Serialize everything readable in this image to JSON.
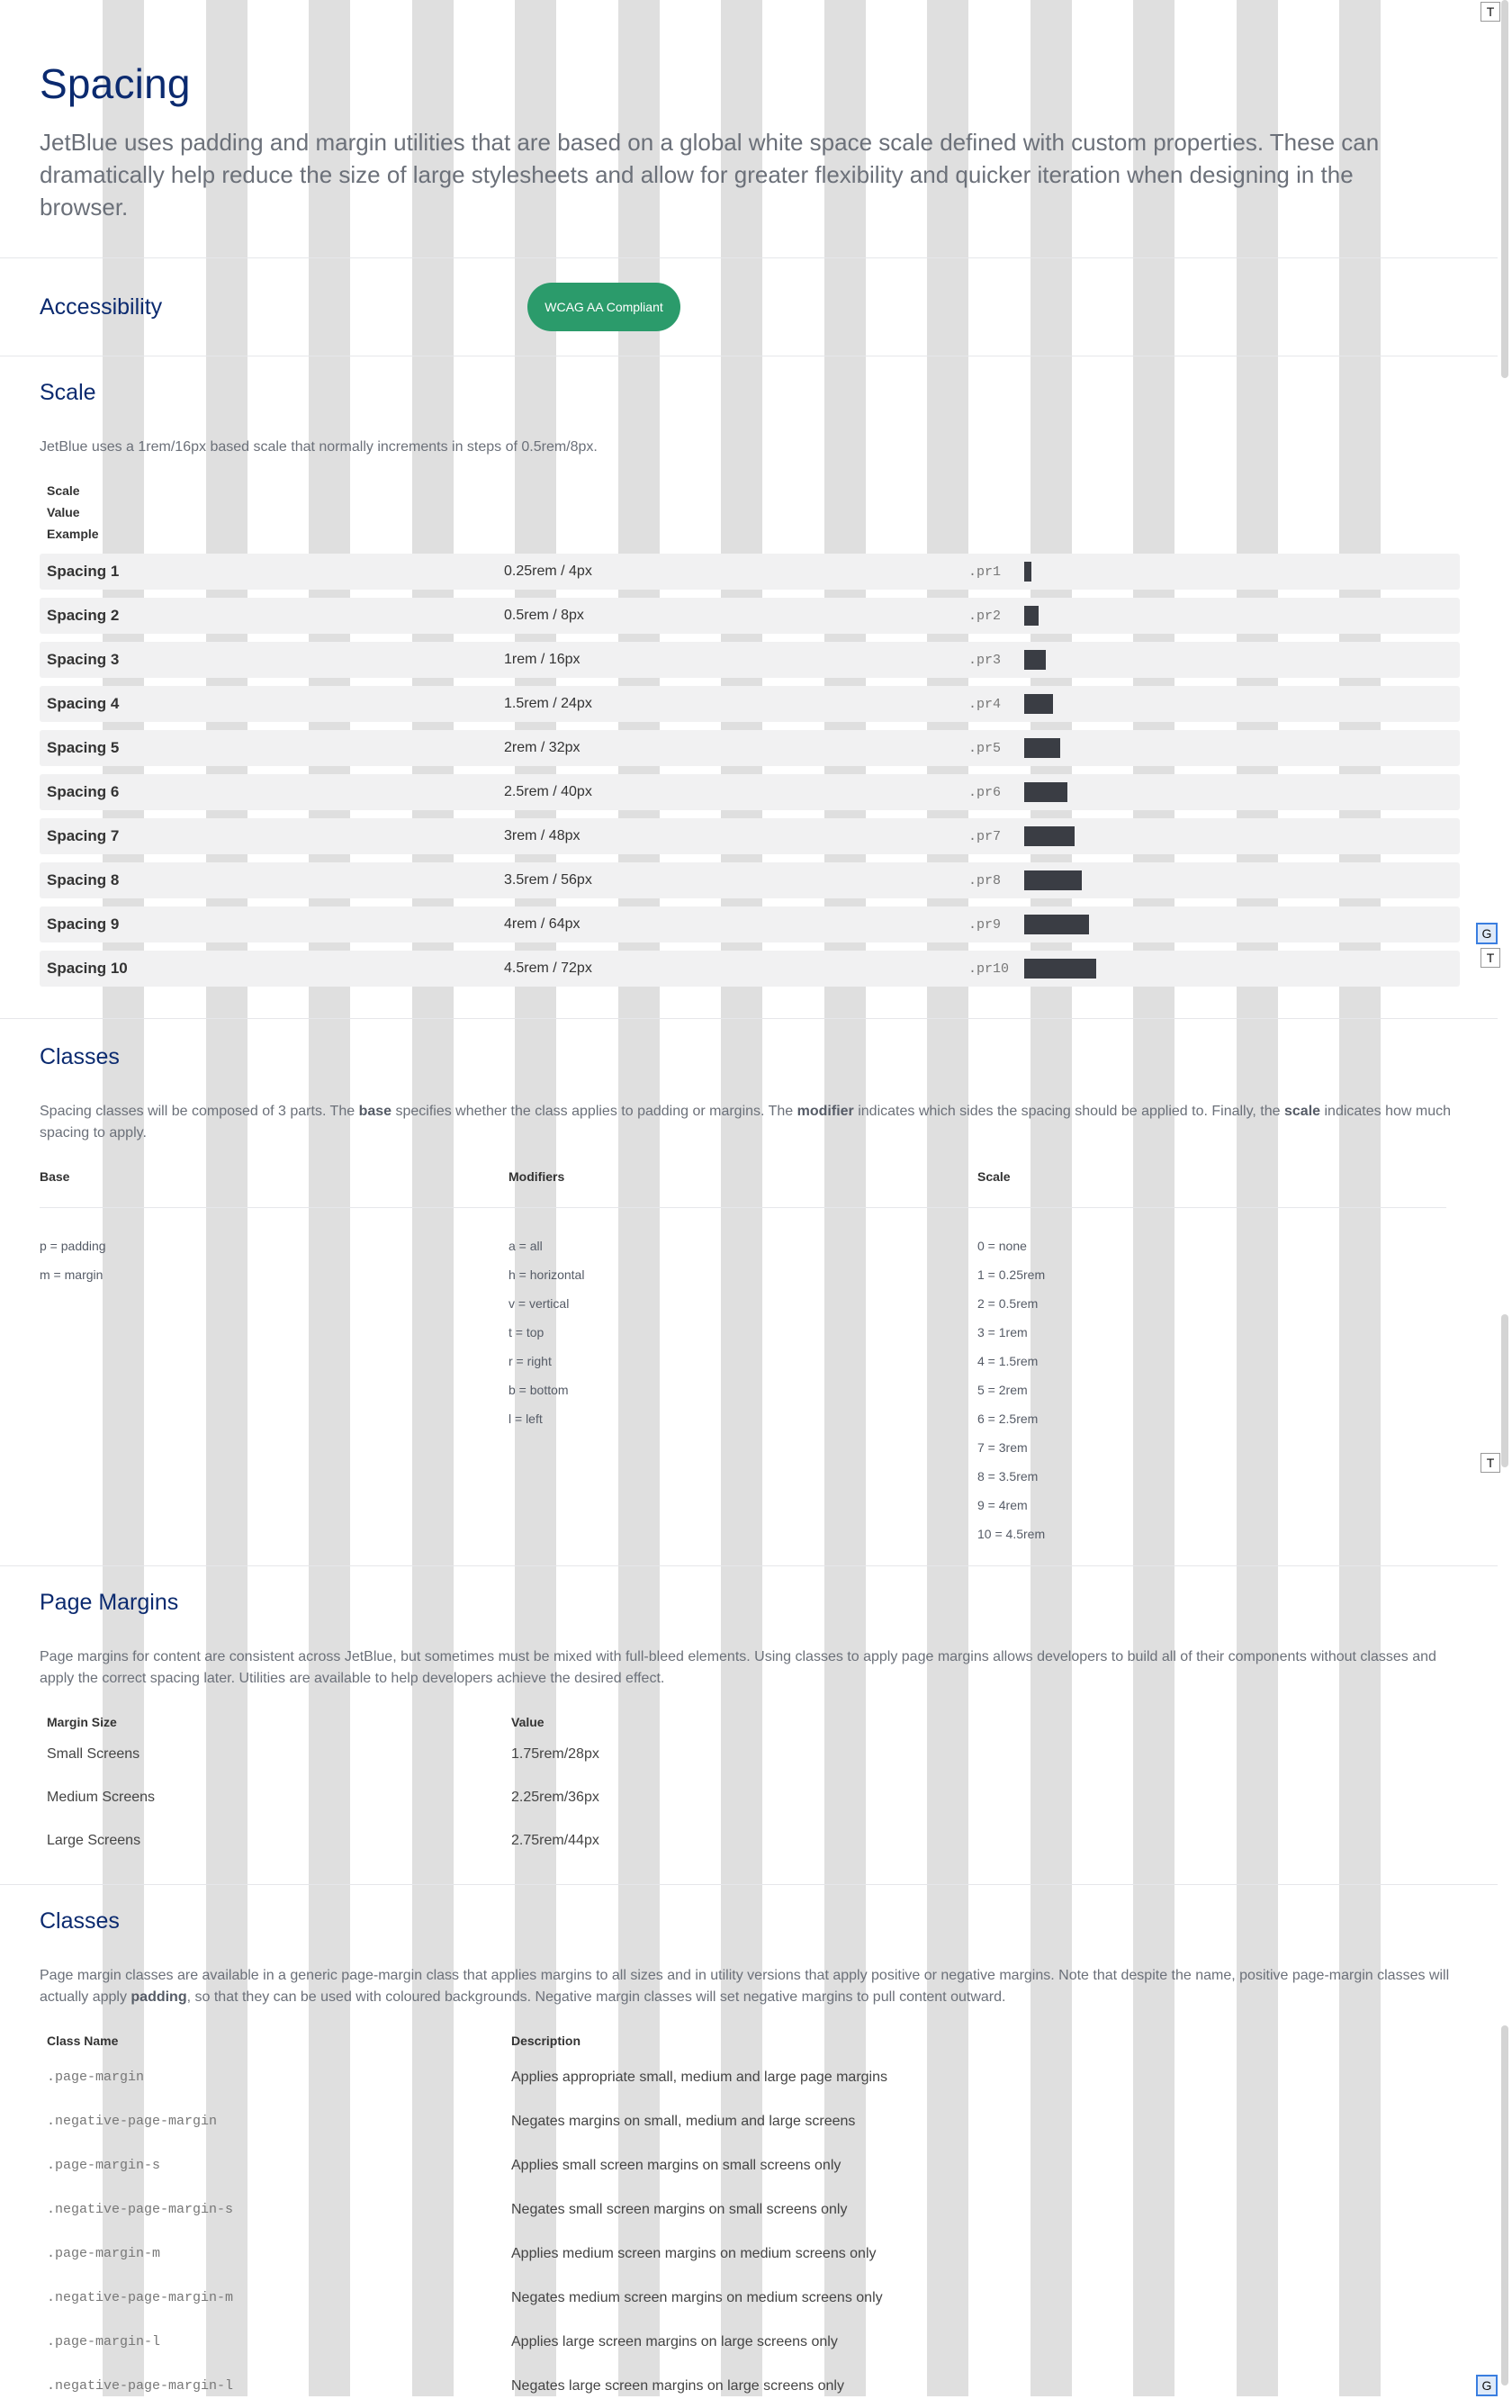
{
  "page": {
    "title": "Spacing",
    "lead": "JetBlue uses padding and margin utilities that are based on a global white space scale defined with custom properties. These can dramatically help reduce the size of large stylesheets and allow for greater flexibility and quicker iteration when designing in the browser."
  },
  "accessibility": {
    "heading": "Accessibility",
    "badge": "WCAG AA Compliant"
  },
  "scale": {
    "heading": "Scale",
    "description": "JetBlue uses a 1rem/16px based scale that normally increments in steps of 0.5rem/8px.",
    "columns": [
      "Scale",
      "Value",
      "Example"
    ],
    "rows": [
      {
        "name": "Spacing 1",
        "value": "0.25rem / 4px",
        "cls": ".pr1"
      },
      {
        "name": "Spacing 2",
        "value": "0.5rem / 8px",
        "cls": ".pr2"
      },
      {
        "name": "Spacing 3",
        "value": "1rem / 16px",
        "cls": ".pr3"
      },
      {
        "name": "Spacing 4",
        "value": "1.5rem / 24px",
        "cls": ".pr4"
      },
      {
        "name": "Spacing 5",
        "value": "2rem / 32px",
        "cls": ".pr5"
      },
      {
        "name": "Spacing 6",
        "value": "2.5rem / 40px",
        "cls": ".pr6"
      },
      {
        "name": "Spacing 7",
        "value": "3rem / 48px",
        "cls": ".pr7"
      },
      {
        "name": "Spacing 8",
        "value": "3.5rem / 56px",
        "cls": ".pr8"
      },
      {
        "name": "Spacing 9",
        "value": "4rem / 64px",
        "cls": ".pr9"
      },
      {
        "name": "Spacing 10",
        "value": "4.5rem / 72px",
        "cls": ".pr10"
      }
    ]
  },
  "classes": {
    "heading": "Classes",
    "desc_1": "Spacing classes will be composed of 3 parts. The ",
    "desc_b1": "base",
    "desc_2": " specifies whether the class applies to padding or margins. The ",
    "desc_b2": "modifier",
    "desc_3": " indicates which sides the spacing should be applied to. Finally, the ",
    "desc_b3": "scale",
    "desc_4": " indicates how much spacing to apply.",
    "base_head": "Base",
    "modifiers_head": "Modifiers",
    "scale_head": "Scale",
    "base": [
      "p = padding",
      "m = margin"
    ],
    "modifiers": [
      "a = all",
      "h = horizontal",
      "v = vertical",
      "t = top",
      "r = right",
      "b = bottom",
      "l = left"
    ],
    "scale": [
      "0 = none",
      "1 = 0.25rem",
      "2 = 0.5rem",
      "3 = 1rem",
      "4 = 1.5rem",
      "5 = 2rem",
      "6 = 2.5rem",
      "7 = 3rem",
      "8 = 3.5rem",
      "9 = 4rem",
      "10 = 4.5rem"
    ]
  },
  "page_margins": {
    "heading": "Page Margins",
    "description": "Page margins for content are consistent across JetBlue, but sometimes must be mixed with full-bleed elements. Using classes to apply page margins allows developers to build all of their components without classes and apply the correct spacing later. Utilities are available to help developers achieve the desired effect.",
    "col_size": "Margin Size",
    "col_value": "Value",
    "rows": [
      {
        "size": "Small Screens",
        "value": "1.75rem/28px"
      },
      {
        "size": "Medium Screens",
        "value": "2.25rem/36px"
      },
      {
        "size": "Large Screens",
        "value": "2.75rem/44px"
      }
    ]
  },
  "pm_classes": {
    "heading": "Classes",
    "desc_1": "Page margin classes are available in a generic page-margin class that applies margins to all sizes and in utility versions that apply positive or negative margins. Note that despite the name, positive page-margin classes will actually apply ",
    "desc_b": "padding",
    "desc_2": ", so that they can be used with coloured backgrounds. Negative margin classes will set negative margins to pull content outward.",
    "col_name": "Class Name",
    "col_desc": "Description",
    "rows": [
      {
        "name": ".page-margin",
        "desc": "Applies appropriate small, medium and large page margins"
      },
      {
        "name": ".negative-page-margin",
        "desc": "Negates margins on small, medium and large screens"
      },
      {
        "name": ".page-margin-s",
        "desc": "Applies small screen margins on small screens only"
      },
      {
        "name": ".negative-page-margin-s",
        "desc": "Negates small screen margins on small screens only"
      },
      {
        "name": ".page-margin-m",
        "desc": "Applies medium screen margins on medium screens only"
      },
      {
        "name": ".negative-page-margin-m",
        "desc": "Negates medium screen margins on medium screens only"
      },
      {
        "name": ".page-margin-l",
        "desc": "Applies large screen margins on large screens only"
      },
      {
        "name": ".negative-page-margin-l",
        "desc": "Negates large screen margins on large screens only"
      }
    ]
  },
  "side_markers": {
    "t": "T",
    "g": "G"
  },
  "colors": {
    "heading": "#0b2a6f",
    "badge": "#2b9b6b",
    "swatch": "#3a3d44"
  }
}
